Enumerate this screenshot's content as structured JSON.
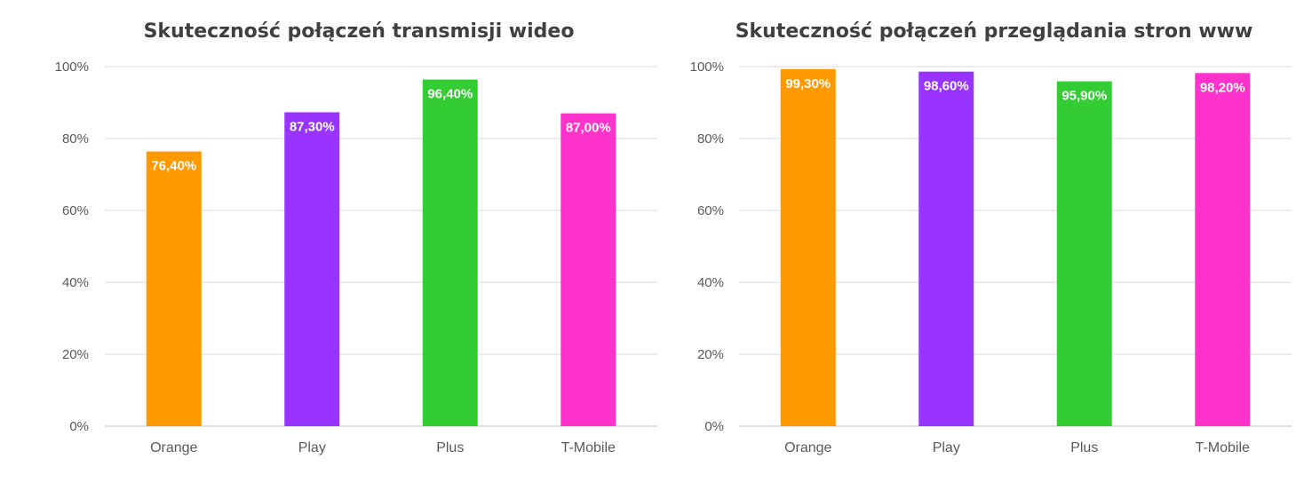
{
  "chart_data": [
    {
      "type": "bar",
      "title": "Skuteczność połączeń transmisji wideo",
      "categories": [
        "Orange",
        "Play",
        "Plus",
        "T-Mobile"
      ],
      "values": [
        76.4,
        87.3,
        96.4,
        87.0
      ],
      "value_labels": [
        "76,40%",
        "87,30%",
        "96,40%",
        "87,00%"
      ],
      "colors": [
        "#ff9900",
        "#9933ff",
        "#33cc33",
        "#ff33cc"
      ],
      "ylim": [
        0,
        100
      ],
      "yticks": [
        0,
        20,
        40,
        60,
        80,
        100
      ],
      "ytick_labels": [
        "0%",
        "20%",
        "40%",
        "60%",
        "80%",
        "100%"
      ],
      "grid": true,
      "legend": "none"
    },
    {
      "type": "bar",
      "title": "Skuteczność połączeń przeglądania stron www",
      "categories": [
        "Orange",
        "Play",
        "Plus",
        "T-Mobile"
      ],
      "values": [
        99.3,
        98.6,
        95.9,
        98.2
      ],
      "value_labels": [
        "99,30%",
        "98,60%",
        "95,90%",
        "98,20%"
      ],
      "colors": [
        "#ff9900",
        "#9933ff",
        "#33cc33",
        "#ff33cc"
      ],
      "ylim": [
        0,
        100
      ],
      "yticks": [
        0,
        20,
        40,
        60,
        80,
        100
      ],
      "ytick_labels": [
        "0%",
        "20%",
        "40%",
        "60%",
        "80%",
        "100%"
      ],
      "grid": true,
      "legend": "none"
    }
  ]
}
